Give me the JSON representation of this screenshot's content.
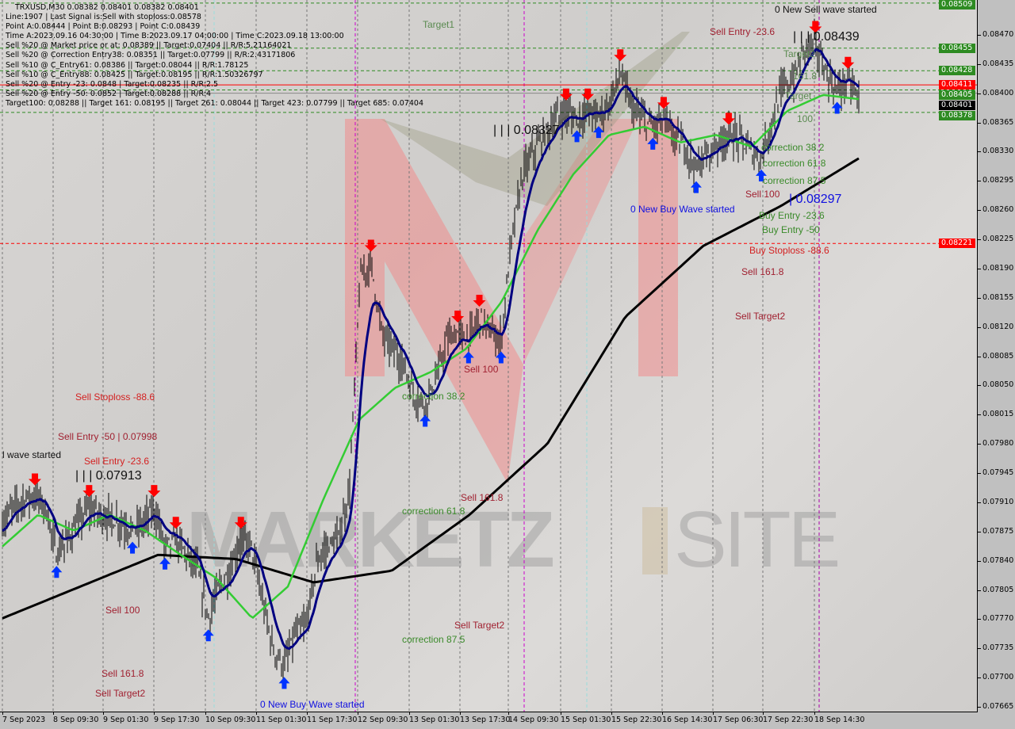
{
  "info_panel": {
    "lines": [
      "TRXUSD,M30  0.08382 0.08401 0.08382 0.08401",
      "Line:1907 | Last Signal is:Sell with stoploss:0.08578",
      "Point A:0.08444 | Point B:0.08293 | Point C:0.08439",
      "Time A:2023.09.16 04:30:00 | Time B:2023.09.17 04:00:00 | Time C:2023.09.18 13:00:00",
      "Sell %20 @ Market price or at: 0.08389 || Target:0.07404 || R/R:5.21164021",
      "Sell %20 @ Correction Entry38: 0.08351 || Target:0.07799 || R/R:2.43171806",
      "Sell %10 @ C_Entry61: 0.08386 || Target:0.08044 || R/R:1.78125",
      "Sell %10 @ C_Entry88: 0.08425 || Target:0.08195 || R/R:1.50326797",
      "Sell %20 @ Entry -23: 0.0848 | Target:0.08235 || R/R:2.5",
      "Sell %20 @ Entry -50: 0.0852 | Target:0.08288 || R/R:4",
      "Target100: 0.08288 || Target 161: 0.08195 || Target 261: 0.08044 || Target 423: 0.07799 || Target 685: 0.07404"
    ]
  },
  "watermark": {
    "brand": "MARKETZ",
    "suffix": "SITE"
  },
  "annotations": [
    {
      "text": "Target1",
      "cls": "tg"
    },
    {
      "text": "Sell Entry -23.6",
      "cls": "dr"
    },
    {
      "text": "0 New Sell wave started",
      "cls": "k"
    },
    {
      "text": "| | | 0.08439",
      "cls": "k big"
    },
    {
      "text": "Target2",
      "cls": "tg"
    },
    {
      "text": "| | | 0.08327",
      "cls": "k big"
    },
    {
      "text": "correction 38.2",
      "cls": "g"
    },
    {
      "text": "correction 61.8",
      "cls": "g"
    },
    {
      "text": "correction 87.5",
      "cls": "g"
    },
    {
      "text": "Sell 100",
      "cls": "dr"
    },
    {
      "text": "| 0.08297",
      "cls": "b big"
    },
    {
      "text": "0 New Buy Wave started",
      "cls": "b"
    },
    {
      "text": "Buy Entry -23.6",
      "cls": "g"
    },
    {
      "text": "Buy Entry -50",
      "cls": "g"
    },
    {
      "text": "Buy Stoploss -88.6",
      "cls": "r"
    },
    {
      "text": "Sell 161.8",
      "cls": "dr"
    },
    {
      "text": "Sell Target2",
      "cls": "dr"
    },
    {
      "text": "Sell 100",
      "cls": "dr"
    },
    {
      "text": "correction 38.2",
      "cls": "g"
    },
    {
      "text": "Sell Stoploss -88.6",
      "cls": "r"
    },
    {
      "text": "Sell Entry -50 | 0.07998",
      "cls": "dr"
    },
    {
      "text": "l wave started",
      "cls": "k"
    },
    {
      "text": "Sell Entry -23.6",
      "cls": "r"
    },
    {
      "text": "| | | 0.07913",
      "cls": "k big"
    },
    {
      "text": "Sell 161.8",
      "cls": "dr"
    },
    {
      "text": "correction 61.8",
      "cls": "g"
    },
    {
      "text": "Sell 100",
      "cls": "dr"
    },
    {
      "text": "Sell Target2",
      "cls": "dr"
    },
    {
      "text": "correction 87.5",
      "cls": "g"
    },
    {
      "text": "Sell 161.8",
      "cls": "dr"
    },
    {
      "text": "Sell Target2",
      "cls": "dr"
    },
    {
      "text": "0 New Buy Wave started",
      "cls": "b"
    },
    {
      "text": "Target",
      "cls": "tg"
    },
    {
      "text": "161.8",
      "cls": "tg"
    },
    {
      "text": "100",
      "cls": "tg"
    }
  ],
  "chart_data": {
    "type": "line",
    "symbol": "TRXUSD",
    "timeframe": "M30",
    "ylim": [
      0.0765,
      0.08515
    ],
    "y_ticks": [
      "0.08470",
      "0.08435",
      "0.08400",
      "0.08365",
      "0.08330",
      "0.08295",
      "0.08260",
      "0.08225",
      "0.08190",
      "0.08155",
      "0.08120",
      "0.08085",
      "0.08050",
      "0.08015",
      "0.07980",
      "0.07945",
      "0.07910",
      "0.07875",
      "0.07840",
      "0.07805",
      "0.07770",
      "0.07735",
      "0.07700",
      "0.07665"
    ],
    "x_ticks": [
      "7 Sep 2023",
      "8 Sep 09:30",
      "9 Sep 01:30",
      "9 Sep 17:30",
      "10 Sep 09:30",
      "11 Sep 01:30",
      "11 Sep 17:30",
      "12 Sep 09:30",
      "13 Sep 01:30",
      "13 Sep 17:30",
      "14 Sep 09:30",
      "15 Sep 01:30",
      "15 Sep 22:30",
      "16 Sep 14:30",
      "17 Sep 06:30",
      "17 Sep 22:30",
      "18 Sep 14:30"
    ],
    "grid": true,
    "price_path": [
      0.07886,
      0.07905,
      0.07915,
      0.07919,
      0.07905,
      0.07848,
      0.07867,
      0.07886,
      0.07905,
      0.07896,
      0.07891,
      0.07886,
      0.07877,
      0.07886,
      0.07905,
      0.07858,
      0.07867,
      0.07848,
      0.07829,
      0.07772,
      0.0781,
      0.07829,
      0.07867,
      0.07858,
      0.07791,
      0.07734,
      0.07715,
      0.07753,
      0.07763,
      0.07839,
      0.07858,
      0.07867,
      0.07924,
      0.0818,
      0.08199,
      0.08114,
      0.08095,
      0.08076,
      0.08038,
      0.08029,
      0.08057,
      0.08105,
      0.08114,
      0.08105,
      0.08133,
      0.08114,
      0.08105,
      0.08228,
      0.08304,
      0.08332,
      0.08351,
      0.0837,
      0.0838,
      0.0837,
      0.0838,
      0.08375,
      0.08389,
      0.08427,
      0.08385,
      0.0837,
      0.08361,
      0.0837,
      0.08347,
      0.08337,
      0.08309,
      0.08328,
      0.08342,
      0.08351,
      0.08347,
      0.08332,
      0.08323,
      0.0837,
      0.08408,
      0.08418,
      0.08456,
      0.08461,
      0.08423,
      0.08404,
      0.08418,
      0.08394
    ],
    "ma_green": [
      0.07858,
      0.07896,
      0.07877,
      0.07896,
      0.07877,
      0.07848,
      0.0782,
      0.07772,
      0.0781,
      0.07915,
      0.0801,
      0.08048,
      0.08067,
      0.08095,
      0.08152,
      0.08237,
      0.08304,
      0.08351,
      0.08361,
      0.08342,
      0.08351,
      0.08337,
      0.0838,
      0.08399,
      0.08394
    ],
    "ma_black": [
      0.07772,
      0.0781,
      0.07848,
      0.07843,
      0.07815,
      0.07829,
      0.07896,
      0.07981,
      0.08133,
      0.08218,
      0.08266,
      0.08323
    ],
    "level_lines": [
      {
        "price": 0.08509,
        "label": "0.08509",
        "color": "#2e8b22",
        "style": "dashed"
      },
      {
        "price": 0.08455,
        "label": "0.08455",
        "color": "#2e8b22",
        "style": "dashed"
      },
      {
        "price": 0.08428,
        "label": "0.08428",
        "color": "#2e8b22",
        "style": "dashed"
      },
      {
        "price": 0.08411,
        "label": "0.08411",
        "color": "#ff0000",
        "style": "solid"
      },
      {
        "price": 0.08405,
        "label": "0.08405",
        "color": "#2e8b22",
        "style": "dashed"
      },
      {
        "price": 0.08401,
        "label": "0.08401",
        "color": "#000000",
        "style": "solid"
      },
      {
        "price": 0.08378,
        "label": "0.08378",
        "color": "#2e8b22",
        "style": "dashed"
      },
      {
        "price": 0.08221,
        "label": "0.08221",
        "color": "#ff0000",
        "style": "dashed"
      }
    ],
    "colors": {
      "bars": "#000000",
      "fast_ma": "#000080",
      "mid_ma": "#33cc33",
      "slow_ma": "#000000",
      "sell_arrow": "#ff0000",
      "buy_arrow": "#0033ff"
    }
  }
}
